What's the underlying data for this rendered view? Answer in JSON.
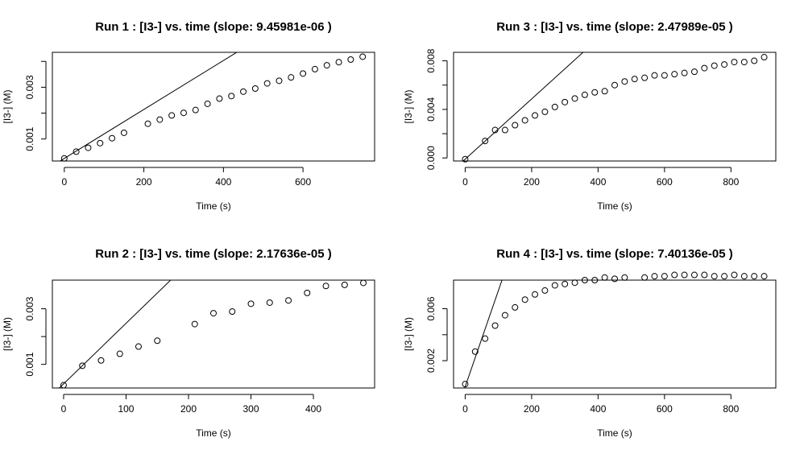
{
  "chart_data": [
    {
      "type": "scatter",
      "title": "Run  1 : [I3-] vs. time (slope:  9.45981e-06 )",
      "xlabel": "Time (s)",
      "ylabel": "[I3-] (M)",
      "xlim": [
        -30,
        780
      ],
      "ylim": [
        0.00015,
        0.00435
      ],
      "xticks": [
        0,
        200,
        400,
        600
      ],
      "xtick_labels": [
        "0",
        "200",
        "400",
        "600"
      ],
      "yticks": [
        0.001,
        0.003
      ],
      "ytick_labels": [
        "0.001",
        "0.003"
      ],
      "ytick_marks": [
        0.001,
        0.002,
        0.003,
        0.004
      ],
      "fit_line": {
        "slope": 9.45981e-06,
        "intercept": 0.00025
      },
      "series": [
        {
          "x": [
            0,
            30,
            60,
            90,
            120,
            150,
            210,
            240,
            270,
            300,
            330,
            360,
            390,
            420,
            450,
            480,
            510,
            540,
            570,
            600,
            630,
            660,
            690,
            720,
            750
          ],
          "y": [
            0.00025,
            0.00051,
            0.00066,
            0.00084,
            0.00103,
            0.00124,
            0.00159,
            0.00175,
            0.00191,
            0.00201,
            0.00212,
            0.00236,
            0.00256,
            0.00266,
            0.00283,
            0.00295,
            0.00315,
            0.00325,
            0.00338,
            0.00353,
            0.0037,
            0.00385,
            0.00397,
            0.00407,
            0.00418
          ]
        }
      ]
    },
    {
      "type": "scatter",
      "title": "Run  3 : [I3-] vs. time (slope:  2.47989e-05 )",
      "xlabel": "Time (s)",
      "ylabel": "[I3-] (M)",
      "xlim": [
        -35,
        935
      ],
      "ylim": [
        -0.00025,
        0.0087
      ],
      "xticks": [
        0,
        200,
        400,
        600,
        800
      ],
      "xtick_labels": [
        "0",
        "200",
        "400",
        "600",
        "800"
      ],
      "yticks": [
        0.0,
        0.004,
        0.008
      ],
      "ytick_labels": [
        "0.000",
        "0.004",
        "0.008"
      ],
      "ytick_marks": [
        0.0,
        0.002,
        0.004,
        0.006,
        0.008
      ],
      "fit_line": {
        "slope": 2.47989e-05,
        "intercept": -0.0001
      },
      "series": [
        {
          "x": [
            0,
            60,
            90,
            120,
            150,
            180,
            210,
            240,
            270,
            300,
            330,
            360,
            390,
            420,
            450,
            480,
            510,
            540,
            570,
            600,
            630,
            660,
            690,
            720,
            750,
            780,
            810,
            840,
            870,
            900
          ],
          "y": [
            -0.0001,
            0.0014,
            0.0023,
            0.0023,
            0.0027,
            0.0031,
            0.0035,
            0.0038,
            0.0042,
            0.0046,
            0.0049,
            0.0052,
            0.0054,
            0.0055,
            0.006,
            0.0063,
            0.0065,
            0.0066,
            0.0068,
            0.0068,
            0.0069,
            0.007,
            0.0071,
            0.0074,
            0.0076,
            0.0077,
            0.0079,
            0.0079,
            0.008,
            0.0083
          ]
        }
      ]
    },
    {
      "type": "scatter",
      "title": "Run  2 : [I3-] vs. time (slope:  2.17636e-05 )",
      "xlabel": "Time (s)",
      "ylabel": "[I3-] (M)",
      "xlim": [
        -18,
        498
      ],
      "ylim": [
        0.00015,
        0.00403
      ],
      "xticks": [
        0,
        100,
        200,
        300,
        400
      ],
      "xtick_labels": [
        "0",
        "100",
        "200",
        "300",
        "400"
      ],
      "yticks": [
        0.001,
        0.003
      ],
      "ytick_labels": [
        "0.001",
        "0.003"
      ],
      "ytick_marks": [
        0.001,
        0.002,
        0.003
      ],
      "fit_line": {
        "slope": 2.17636e-05,
        "intercept": 0.0003
      },
      "series": [
        {
          "x": [
            0,
            30,
            60,
            90,
            120,
            150,
            210,
            240,
            270,
            300,
            330,
            360,
            390,
            420,
            450,
            480
          ],
          "y": [
            0.00025,
            0.00095,
            0.00114,
            0.00138,
            0.00164,
            0.00185,
            0.00245,
            0.00284,
            0.0029,
            0.00318,
            0.00322,
            0.0033,
            0.00357,
            0.00382,
            0.00386,
            0.00393
          ]
        }
      ]
    },
    {
      "type": "scatter",
      "title": "Run  4 : [I3-] vs. time (slope:  7.40136e-05 )",
      "xlabel": "Time (s)",
      "ylabel": "[I3-] (M)",
      "xlim": [
        -35,
        935
      ],
      "ylim": [
        -0.0001,
        0.0082
      ],
      "xticks": [
        0,
        200,
        400,
        600,
        800
      ],
      "xtick_labels": [
        "0",
        "200",
        "400",
        "600",
        "800"
      ],
      "yticks": [
        0.002,
        0.006
      ],
      "ytick_labels": [
        "0.002",
        "0.006"
      ],
      "ytick_marks": [
        0.002,
        0.004,
        0.006
      ],
      "fit_line": {
        "slope": 7.40136e-05,
        "intercept": 0.0
      },
      "series": [
        {
          "x": [
            0,
            30,
            60,
            90,
            120,
            150,
            180,
            210,
            240,
            270,
            300,
            330,
            360,
            390,
            420,
            450,
            480,
            540,
            570,
            600,
            630,
            660,
            690,
            720,
            750,
            780,
            810,
            840,
            870,
            900
          ],
          "y": [
            0.0002,
            0.0027,
            0.0037,
            0.0047,
            0.0055,
            0.0061,
            0.0067,
            0.0071,
            0.0074,
            0.0078,
            0.0079,
            0.008,
            0.0082,
            0.0082,
            0.0084,
            0.0083,
            0.0084,
            0.0084,
            0.0085,
            0.0085,
            0.0086,
            0.0086,
            0.0086,
            0.0086,
            0.0085,
            0.0085,
            0.0086,
            0.0085,
            0.0085,
            0.0085
          ]
        }
      ]
    }
  ]
}
